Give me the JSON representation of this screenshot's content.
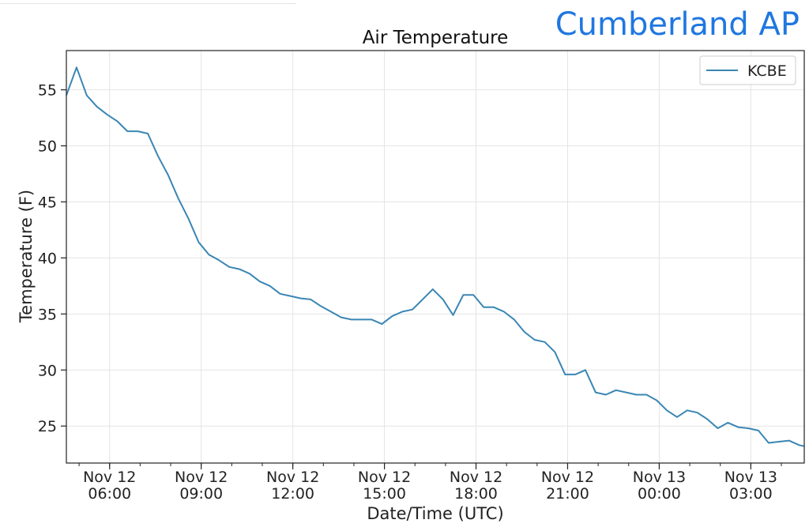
{
  "header": {
    "site_name": "Cumberland AP"
  },
  "colors": {
    "series": "#3a86b4",
    "site_name": "#1f77e0",
    "grid": "#e4e4e4"
  },
  "chart_data": {
    "type": "line",
    "title": "Air Temperature",
    "xlabel": "Date/Time (UTC)",
    "ylabel": "Temperature (F)",
    "xlim": [
      "2018-11-12T04:35",
      "2018-11-13T04:45"
    ],
    "ylim": [
      21.7,
      58.5
    ],
    "grid": true,
    "legend_position": "top-right",
    "x_ticks": [
      {
        "at": "2018-11-12T06:00",
        "line1": "Nov 12",
        "line2": "06:00"
      },
      {
        "at": "2018-11-12T09:00",
        "line1": "Nov 12",
        "line2": "09:00"
      },
      {
        "at": "2018-11-12T12:00",
        "line1": "Nov 12",
        "line2": "12:00"
      },
      {
        "at": "2018-11-12T15:00",
        "line1": "Nov 12",
        "line2": "15:00"
      },
      {
        "at": "2018-11-12T18:00",
        "line1": "Nov 12",
        "line2": "18:00"
      },
      {
        "at": "2018-11-12T21:00",
        "line1": "Nov 12",
        "line2": "21:00"
      },
      {
        "at": "2018-11-13T00:00",
        "line1": "Nov 13",
        "line2": "00:00"
      },
      {
        "at": "2018-11-13T03:00",
        "line1": "Nov 13",
        "line2": "03:00"
      }
    ],
    "y_ticks": [
      25,
      30,
      35,
      40,
      45,
      50,
      55
    ],
    "series": [
      {
        "name": "KCBE",
        "x": [
          "2018-11-12T04:35",
          "2018-11-12T04:55",
          "2018-11-12T05:15",
          "2018-11-12T05:35",
          "2018-11-12T05:55",
          "2018-11-12T06:15",
          "2018-11-12T06:35",
          "2018-11-12T06:55",
          "2018-11-12T07:15",
          "2018-11-12T07:35",
          "2018-11-12T07:55",
          "2018-11-12T08:15",
          "2018-11-12T08:35",
          "2018-11-12T08:55",
          "2018-11-12T09:15",
          "2018-11-12T09:35",
          "2018-11-12T09:55",
          "2018-11-12T10:15",
          "2018-11-12T10:35",
          "2018-11-12T10:55",
          "2018-11-12T11:15",
          "2018-11-12T11:35",
          "2018-11-12T11:55",
          "2018-11-12T12:15",
          "2018-11-12T12:35",
          "2018-11-12T12:55",
          "2018-11-12T13:15",
          "2018-11-12T13:35",
          "2018-11-12T13:55",
          "2018-11-12T14:15",
          "2018-11-12T14:35",
          "2018-11-12T14:55",
          "2018-11-12T15:15",
          "2018-11-12T15:35",
          "2018-11-12T15:55",
          "2018-11-12T16:15",
          "2018-11-12T16:35",
          "2018-11-12T16:55",
          "2018-11-12T17:15",
          "2018-11-12T17:35",
          "2018-11-12T17:55",
          "2018-11-12T18:15",
          "2018-11-12T18:35",
          "2018-11-12T18:55",
          "2018-11-12T19:15",
          "2018-11-12T19:35",
          "2018-11-12T19:55",
          "2018-11-12T20:15",
          "2018-11-12T20:35",
          "2018-11-12T20:55",
          "2018-11-12T21:15",
          "2018-11-12T21:35",
          "2018-11-12T21:55",
          "2018-11-12T22:15",
          "2018-11-12T22:35",
          "2018-11-12T22:55",
          "2018-11-12T23:15",
          "2018-11-12T23:35",
          "2018-11-12T23:55",
          "2018-11-13T00:15",
          "2018-11-13T00:35",
          "2018-11-13T00:55",
          "2018-11-13T01:15",
          "2018-11-13T01:35",
          "2018-11-13T01:55",
          "2018-11-13T02:15",
          "2018-11-13T02:35",
          "2018-11-13T02:55",
          "2018-11-13T03:15",
          "2018-11-13T03:35",
          "2018-11-13T03:55",
          "2018-11-13T04:15",
          "2018-11-13T04:35",
          "2018-11-13T04:45"
        ],
        "y": [
          54.5,
          57.0,
          54.5,
          53.5,
          52.8,
          52.2,
          51.3,
          51.3,
          51.1,
          49.1,
          47.4,
          45.3,
          43.5,
          41.4,
          40.3,
          39.8,
          39.2,
          39.0,
          38.6,
          37.9,
          37.5,
          36.8,
          36.6,
          36.4,
          36.3,
          35.7,
          35.2,
          34.7,
          34.5,
          34.5,
          34.5,
          34.1,
          34.8,
          35.2,
          35.4,
          36.3,
          37.2,
          36.3,
          34.9,
          36.7,
          36.7,
          35.6,
          35.6,
          35.2,
          34.5,
          33.4,
          32.7,
          32.5,
          31.6,
          29.6,
          29.6,
          30.0,
          28.0,
          27.8,
          28.2,
          28.0,
          27.8,
          27.8,
          27.3,
          26.4,
          25.8,
          26.4,
          26.2,
          25.6,
          24.8,
          25.3,
          24.9,
          24.8,
          24.6,
          23.5,
          23.6,
          23.7,
          23.3,
          23.2
        ]
      }
    ]
  }
}
